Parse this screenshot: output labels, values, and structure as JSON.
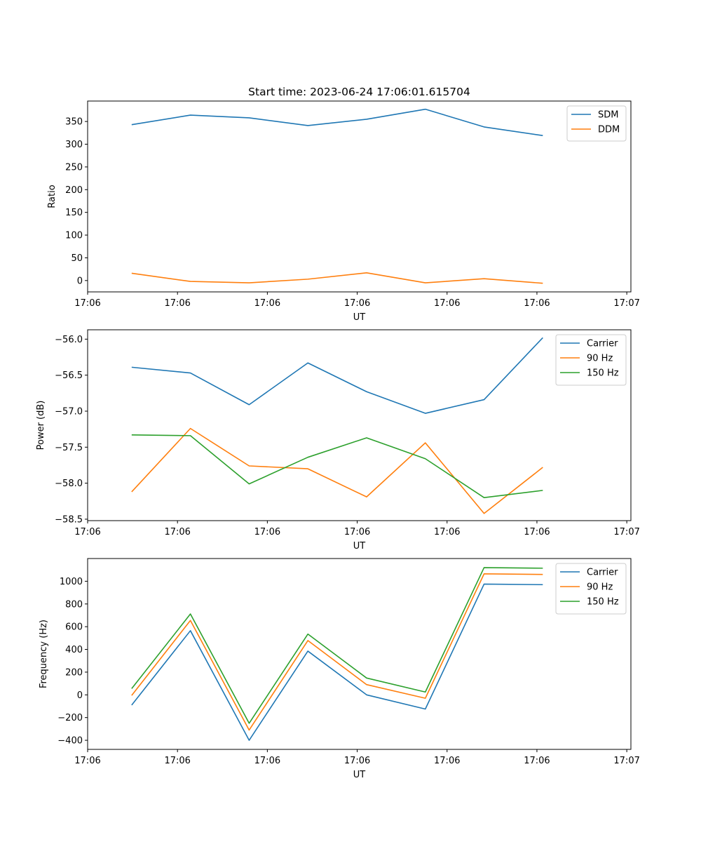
{
  "chart_data": [
    {
      "type": "line",
      "title": "Start time: 2023-06-24 17:06:01.615704",
      "xlabel": "UT",
      "ylabel": "Ratio",
      "x_ticks": [
        "17:06",
        "17:06",
        "17:06",
        "17:06",
        "17:06",
        "17:06",
        "17:07"
      ],
      "y_ticks": [
        "0",
        "50",
        "100",
        "150",
        "200",
        "250",
        "300",
        "350"
      ],
      "ylim": [
        -25,
        395
      ],
      "legend": "top-right",
      "grid": false,
      "series": [
        {
          "name": "SDM",
          "color": "#1f77b4",
          "values": [
            343,
            364,
            358,
            341,
            355,
            377,
            338,
            319
          ]
        },
        {
          "name": "DDM",
          "color": "#ff7f0e",
          "values": [
            16,
            -2,
            -5,
            3,
            17,
            -5,
            4,
            -6
          ]
        }
      ]
    },
    {
      "type": "line",
      "title": "",
      "xlabel": "UT",
      "ylabel": "Power (dB)",
      "x_ticks": [
        "17:06",
        "17:06",
        "17:06",
        "17:06",
        "17:06",
        "17:06",
        "17:07"
      ],
      "y_ticks": [
        "−58.5",
        "−58.0",
        "−57.5",
        "−57.0",
        "−56.5",
        "−56.0"
      ],
      "ylim": [
        -58.52,
        -55.87
      ],
      "legend": "top-right",
      "grid": false,
      "series": [
        {
          "name": "Carrier",
          "color": "#1f77b4",
          "values": [
            -56.39,
            -56.47,
            -56.91,
            -56.33,
            -56.73,
            -57.03,
            -56.84,
            -55.98
          ]
        },
        {
          "name": "90 Hz",
          "color": "#ff7f0e",
          "values": [
            -58.12,
            -57.24,
            -57.76,
            -57.8,
            -58.19,
            -57.44,
            -58.42,
            -57.78
          ]
        },
        {
          "name": "150 Hz",
          "color": "#2ca02c",
          "values": [
            -57.33,
            -57.34,
            -58.01,
            -57.64,
            -57.37,
            -57.66,
            -58.2,
            -58.1
          ]
        }
      ]
    },
    {
      "type": "line",
      "title": "",
      "xlabel": "UT",
      "ylabel": "Frequency (Hz)",
      "x_ticks": [
        "17:06",
        "17:06",
        "17:06",
        "17:06",
        "17:06",
        "17:06",
        "17:07"
      ],
      "y_ticks": [
        "−400",
        "−200",
        "0",
        "200",
        "400",
        "600",
        "800",
        "1000"
      ],
      "ylim": [
        -480,
        1200
      ],
      "legend": "top-right",
      "grid": false,
      "series": [
        {
          "name": "Carrier",
          "color": "#1f77b4",
          "values": [
            -90,
            565,
            -400,
            385,
            0,
            -125,
            975,
            970
          ]
        },
        {
          "name": "90 Hz",
          "color": "#ff7f0e",
          "values": [
            -5,
            655,
            -310,
            478,
            90,
            -30,
            1065,
            1060
          ]
        },
        {
          "name": "150 Hz",
          "color": "#2ca02c",
          "values": [
            55,
            712,
            -250,
            535,
            148,
            25,
            1120,
            1115
          ]
        }
      ]
    }
  ]
}
